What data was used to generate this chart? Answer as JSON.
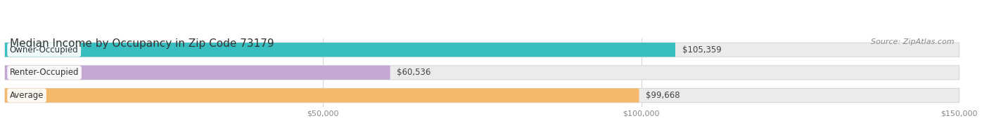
{
  "title": "Median Income by Occupancy in Zip Code 73179",
  "source": "Source: ZipAtlas.com",
  "categories": [
    "Owner-Occupied",
    "Renter-Occupied",
    "Average"
  ],
  "values": [
    105359,
    60536,
    99668
  ],
  "bar_colors": [
    "#38bec0",
    "#c4a8d4",
    "#f5b96e"
  ],
  "label_texts": [
    "$105,359",
    "$60,536",
    "$99,668"
  ],
  "xlim": [
    0,
    150000
  ],
  "xticks": [
    50000,
    100000,
    150000
  ],
  "xticklabels": [
    "$50,000",
    "$100,000",
    "$150,000"
  ],
  "figsize": [
    14.06,
    1.96
  ],
  "dpi": 100,
  "bg_color": "#ffffff",
  "bar_bg_color": "#ebebeb",
  "bar_border_color": "#d8d8d8",
  "title_fontsize": 11,
  "source_fontsize": 8,
  "label_fontsize": 8.5,
  "cat_fontsize": 8.5,
  "tick_fontsize": 8
}
